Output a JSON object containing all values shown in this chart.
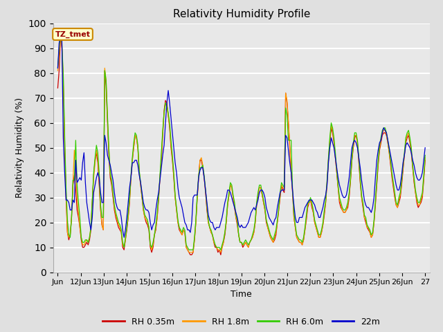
{
  "title": "Relativity Humidity Profile",
  "xlabel": "Time",
  "ylabel": "Relativity Humidity (%)",
  "annotation_text": "TZ_tmet",
  "ylim": [
    0,
    100
  ],
  "yticks": [
    0,
    10,
    20,
    30,
    40,
    50,
    60,
    70,
    80,
    90,
    100
  ],
  "x_tick_labels": [
    "Jun",
    "12Jun",
    "13Jun",
    "14Jun",
    "15Jun",
    "16Jun",
    "17Jun",
    "18Jun",
    "19Jun",
    "20Jun",
    "21Jun",
    "22Jun",
    "23Jun",
    "24Jun",
    "25Jun",
    "26Jun",
    "27"
  ],
  "line_colors": [
    "#cc0000",
    "#ff9900",
    "#33cc00",
    "#0000cc"
  ],
  "line_labels": [
    "RH 0.35m",
    "RH 1.8m",
    "RH 6.0m",
    "22m"
  ],
  "background_color": "#e0e0e0",
  "plot_bg_color": "#e8e8e8",
  "grid_color": "#ffffff",
  "annotation_bg": "#ffffcc",
  "annotation_border": "#cc8800",
  "annotation_text_color": "#990000",
  "rh035": [
    74,
    81,
    95,
    90,
    75,
    50,
    30,
    16,
    13,
    15,
    22,
    35,
    39,
    33,
    25,
    22,
    18,
    13,
    10,
    10,
    11,
    12,
    11,
    13,
    17,
    28,
    39,
    45,
    48,
    44,
    35,
    25,
    19,
    17,
    81,
    75,
    60,
    47,
    38,
    35,
    30,
    25,
    22,
    20,
    18,
    17,
    16,
    10,
    9,
    13,
    17,
    22,
    28,
    38,
    45,
    50,
    55,
    54,
    50,
    40,
    35,
    30,
    25,
    22,
    20,
    19,
    17,
    10,
    8,
    10,
    15,
    17,
    22,
    29,
    38,
    45,
    55,
    65,
    69,
    68,
    63,
    58,
    50,
    45,
    38,
    30,
    25,
    20,
    17,
    16,
    15,
    17,
    16,
    10,
    9,
    8,
    7,
    7,
    8,
    13,
    20,
    30,
    38,
    45,
    45,
    42,
    38,
    32,
    25,
    20,
    18,
    16,
    15,
    12,
    10,
    10,
    8,
    9,
    7,
    10,
    12,
    15,
    20,
    27,
    31,
    35,
    34,
    30,
    26,
    22,
    19,
    15,
    12,
    12,
    10,
    11,
    12,
    11,
    10,
    12,
    13,
    14,
    16,
    20,
    27,
    31,
    34,
    34,
    31,
    28,
    25,
    20,
    18,
    16,
    14,
    13,
    12,
    13,
    15,
    20,
    25,
    30,
    35,
    33,
    32,
    72,
    68,
    60,
    50,
    40,
    32,
    22,
    18,
    14,
    13,
    12,
    12,
    11,
    13,
    17,
    21,
    26,
    28,
    29,
    26,
    24,
    20,
    18,
    16,
    14,
    14,
    16,
    19,
    23,
    28,
    36,
    45,
    52,
    58,
    56,
    52,
    46,
    40,
    34,
    28,
    26,
    25,
    24,
    24,
    25,
    26,
    30,
    37,
    45,
    50,
    54,
    55,
    52,
    44,
    36,
    30,
    26,
    22,
    20,
    18,
    17,
    16,
    14,
    15,
    20,
    27,
    35,
    43,
    49,
    52,
    55,
    56,
    56,
    55,
    52,
    48,
    43,
    38,
    34,
    30,
    27,
    26,
    28,
    30,
    35,
    41,
    47,
    52,
    54,
    55,
    52,
    48,
    42,
    36,
    32,
    28,
    26,
    27,
    28,
    30,
    37,
    45
  ],
  "rh18": [
    81,
    88,
    95,
    91,
    78,
    53,
    32,
    16,
    14,
    15,
    22,
    36,
    49,
    41,
    30,
    24,
    18,
    14,
    11,
    11,
    12,
    13,
    12,
    14,
    18,
    29,
    38,
    44,
    49,
    46,
    37,
    26,
    19,
    17,
    82,
    77,
    62,
    49,
    40,
    36,
    31,
    26,
    23,
    21,
    19,
    18,
    16,
    11,
    10,
    13,
    18,
    22,
    29,
    38,
    45,
    50,
    55,
    54,
    50,
    40,
    35,
    30,
    25,
    22,
    21,
    20,
    18,
    11,
    9,
    11,
    15,
    18,
    22,
    30,
    38,
    46,
    56,
    64,
    68,
    66,
    63,
    59,
    51,
    46,
    39,
    30,
    25,
    20,
    18,
    16,
    15,
    17,
    16,
    10,
    9,
    8,
    8,
    8,
    8,
    13,
    20,
    30,
    38,
    45,
    46,
    43,
    38,
    33,
    26,
    20,
    18,
    16,
    15,
    12,
    11,
    10,
    9,
    9,
    8,
    10,
    12,
    16,
    20,
    27,
    31,
    35,
    34,
    30,
    27,
    22,
    20,
    15,
    12,
    12,
    11,
    11,
    12,
    11,
    10,
    12,
    13,
    14,
    16,
    20,
    27,
    31,
    34,
    34,
    31,
    28,
    25,
    21,
    18,
    16,
    14,
    13,
    12,
    14,
    16,
    20,
    25,
    31,
    35,
    34,
    33,
    72,
    69,
    61,
    51,
    41,
    33,
    22,
    18,
    14,
    13,
    12,
    12,
    11,
    13,
    17,
    22,
    27,
    28,
    29,
    27,
    24,
    20,
    18,
    16,
    14,
    14,
    16,
    19,
    24,
    28,
    36,
    45,
    53,
    59,
    57,
    53,
    46,
    40,
    34,
    29,
    27,
    25,
    24,
    24,
    25,
    27,
    31,
    37,
    45,
    51,
    55,
    55,
    52,
    45,
    37,
    30,
    27,
    22,
    21,
    18,
    18,
    16,
    14,
    15,
    20,
    28,
    36,
    44,
    50,
    53,
    56,
    57,
    57,
    55,
    52,
    48,
    44,
    39,
    35,
    31,
    27,
    26,
    29,
    31,
    36,
    42,
    47,
    53,
    55,
    56,
    53,
    49,
    42,
    37,
    32,
    29,
    27,
    27,
    29,
    31,
    38,
    46
  ],
  "rh60": [
    82,
    90,
    96,
    92,
    79,
    55,
    34,
    21,
    15,
    14,
    22,
    37,
    37,
    53,
    35,
    28,
    22,
    14,
    12,
    12,
    13,
    13,
    12,
    14,
    18,
    29,
    40,
    46,
    51,
    48,
    40,
    27,
    22,
    22,
    81,
    77,
    63,
    50,
    40,
    37,
    32,
    27,
    24,
    22,
    20,
    19,
    17,
    12,
    10,
    14,
    18,
    24,
    30,
    39,
    46,
    52,
    56,
    55,
    51,
    41,
    36,
    31,
    26,
    23,
    22,
    21,
    18,
    11,
    10,
    12,
    15,
    19,
    24,
    30,
    39,
    48,
    57,
    64,
    68,
    67,
    64,
    60,
    53,
    47,
    40,
    31,
    26,
    21,
    18,
    17,
    16,
    18,
    17,
    11,
    10,
    9,
    9,
    9,
    9,
    14,
    21,
    31,
    39,
    42,
    42,
    43,
    39,
    33,
    27,
    21,
    18,
    17,
    15,
    13,
    11,
    10,
    10,
    10,
    9,
    11,
    13,
    16,
    21,
    28,
    32,
    36,
    35,
    31,
    28,
    23,
    21,
    15,
    12,
    12,
    11,
    12,
    13,
    12,
    11,
    12,
    13,
    15,
    17,
    21,
    28,
    32,
    35,
    35,
    32,
    29,
    26,
    21,
    19,
    17,
    15,
    14,
    13,
    15,
    17,
    21,
    26,
    32,
    36,
    35,
    34,
    66,
    63,
    53,
    53,
    53,
    33,
    24,
    19,
    15,
    14,
    13,
    13,
    12,
    14,
    18,
    23,
    28,
    28,
    30,
    28,
    25,
    21,
    19,
    17,
    15,
    15,
    17,
    20,
    25,
    29,
    37,
    46,
    54,
    60,
    58,
    54,
    48,
    41,
    35,
    30,
    28,
    26,
    25,
    25,
    26,
    28,
    32,
    38,
    46,
    52,
    56,
    56,
    53,
    46,
    38,
    31,
    28,
    23,
    22,
    19,
    18,
    17,
    15,
    16,
    21,
    29,
    37,
    45,
    51,
    54,
    57,
    58,
    58,
    56,
    53,
    49,
    45,
    40,
    36,
    32,
    28,
    27,
    30,
    32,
    37,
    43,
    48,
    54,
    56,
    57,
    54,
    50,
    43,
    38,
    33,
    30,
    28,
    28,
    30,
    32,
    39,
    47
  ],
  "rh22": [
    82,
    92,
    95,
    93,
    54,
    40,
    29,
    29,
    28,
    25,
    25,
    29,
    28,
    45,
    36,
    37,
    38,
    37,
    44,
    48,
    36,
    28,
    24,
    20,
    17,
    22,
    32,
    35,
    38,
    40,
    38,
    32,
    28,
    28,
    55,
    52,
    47,
    45,
    43,
    40,
    37,
    32,
    28,
    26,
    25,
    25,
    22,
    17,
    14,
    17,
    22,
    28,
    34,
    38,
    44,
    44,
    45,
    45,
    43,
    39,
    36,
    32,
    28,
    26,
    25,
    25,
    24,
    20,
    17,
    19,
    20,
    25,
    29,
    32,
    37,
    42,
    47,
    51,
    60,
    68,
    73,
    68,
    62,
    56,
    50,
    44,
    40,
    34,
    30,
    28,
    26,
    23,
    20,
    19,
    17,
    17,
    16,
    20,
    30,
    31,
    31,
    31,
    38,
    41,
    42,
    42,
    38,
    33,
    28,
    23,
    21,
    20,
    20,
    18,
    17,
    18,
    18,
    18,
    20,
    22,
    25,
    28,
    30,
    33,
    33,
    32,
    30,
    28,
    26,
    24,
    22,
    19,
    18,
    19,
    18,
    18,
    18,
    19,
    20,
    22,
    24,
    25,
    26,
    25,
    27,
    29,
    32,
    33,
    33,
    32,
    30,
    26,
    24,
    22,
    21,
    20,
    19,
    21,
    22,
    26,
    29,
    32,
    33,
    33,
    33,
    55,
    54,
    49,
    44,
    40,
    33,
    27,
    22,
    20,
    20,
    22,
    22,
    22,
    24,
    26,
    27,
    28,
    29,
    29,
    29,
    28,
    27,
    25,
    24,
    22,
    22,
    24,
    26,
    29,
    31,
    35,
    44,
    50,
    54,
    52,
    50,
    46,
    42,
    38,
    35,
    33,
    31,
    30,
    30,
    31,
    34,
    38,
    44,
    50,
    52,
    53,
    52,
    50,
    46,
    42,
    37,
    33,
    29,
    27,
    26,
    26,
    25,
    24,
    26,
    30,
    38,
    45,
    49,
    52,
    53,
    56,
    58,
    57,
    56,
    53,
    50,
    47,
    44,
    41,
    38,
    35,
    33,
    33,
    35,
    39,
    44,
    47,
    51,
    52,
    51,
    50,
    48,
    45,
    43,
    40,
    38,
    37,
    37,
    38,
    40,
    45,
    50
  ]
}
